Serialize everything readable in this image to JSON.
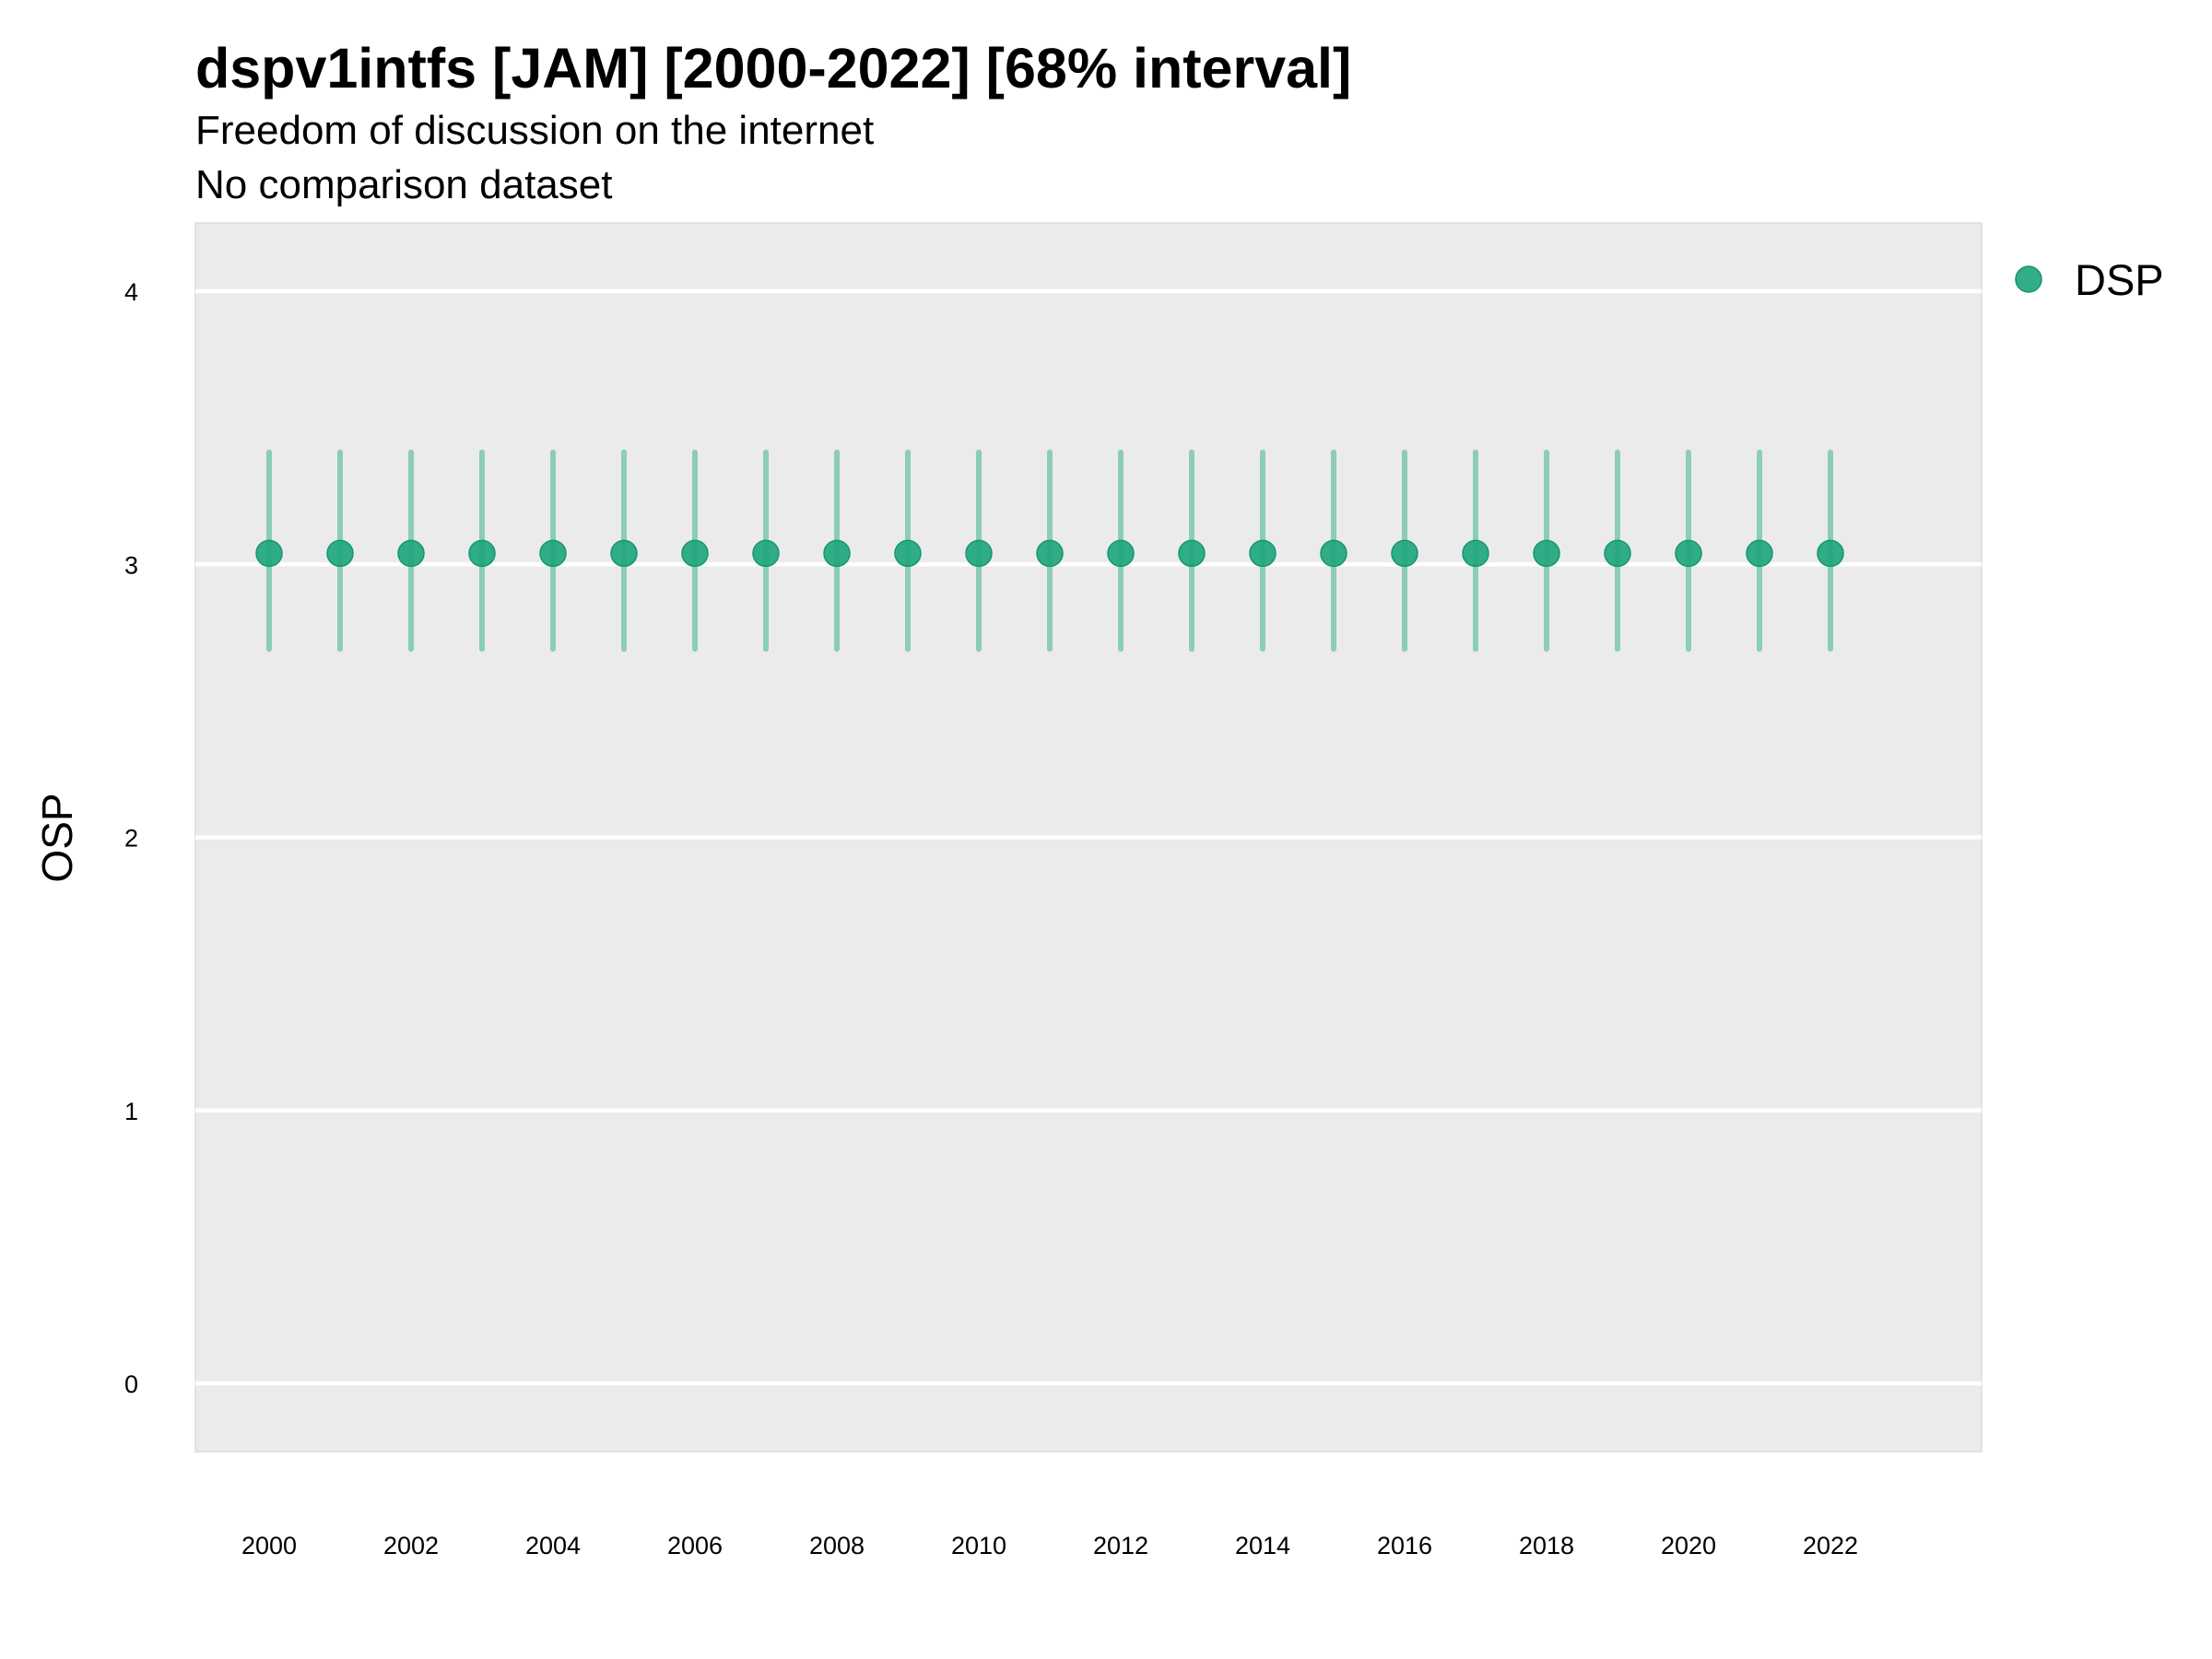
{
  "chart_data": {
    "type": "scatter",
    "title": "dspv1intfs [JAM] [2000-2022] [68% interval]",
    "subtitle": "Freedom of discussion on the internet",
    "caption_line": "No comparison dataset",
    "xlabel": "",
    "ylabel": "OSP",
    "xlim": [
      1999,
      2023
    ],
    "ylim": [
      -0.25,
      4.25
    ],
    "x_ticks": [
      "2000",
      "2002",
      "2004",
      "2006",
      "2008",
      "2010",
      "2012",
      "2014",
      "2016",
      "2018",
      "2020",
      "2022"
    ],
    "y_ticks": [
      "0",
      "1",
      "2",
      "3",
      "4"
    ],
    "grid": true,
    "panel_background": "#ebebeb",
    "legend_position": "right",
    "series": [
      {
        "name": "DSP",
        "color": "#1fa67e",
        "interval_color": "#8ccdb6",
        "x": [
          2000,
          2001,
          2002,
          2003,
          2004,
          2005,
          2006,
          2007,
          2008,
          2009,
          2010,
          2011,
          2012,
          2013,
          2014,
          2015,
          2016,
          2017,
          2018,
          2019,
          2020,
          2021,
          2022
        ],
        "y": [
          3.04,
          3.04,
          3.04,
          3.04,
          3.04,
          3.04,
          3.04,
          3.04,
          3.04,
          3.04,
          3.04,
          3.04,
          3.04,
          3.04,
          3.04,
          3.04,
          3.04,
          3.04,
          3.04,
          3.04,
          3.04,
          3.04,
          3.04
        ],
        "lower": [
          2.69,
          2.69,
          2.69,
          2.69,
          2.69,
          2.69,
          2.69,
          2.69,
          2.69,
          2.69,
          2.69,
          2.69,
          2.69,
          2.69,
          2.69,
          2.69,
          2.69,
          2.69,
          2.69,
          2.69,
          2.69,
          2.69,
          2.69
        ],
        "upper": [
          3.41,
          3.41,
          3.41,
          3.41,
          3.41,
          3.41,
          3.41,
          3.41,
          3.41,
          3.41,
          3.41,
          3.41,
          3.41,
          3.41,
          3.41,
          3.41,
          3.41,
          3.41,
          3.41,
          3.41,
          3.41,
          3.41,
          3.41
        ]
      }
    ]
  }
}
